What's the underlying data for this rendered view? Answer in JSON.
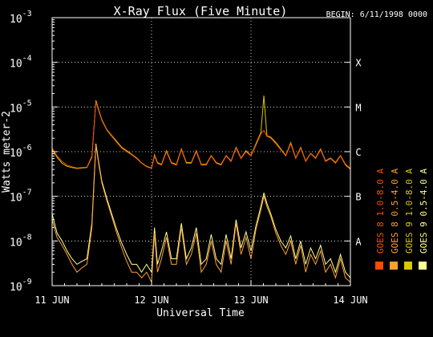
{
  "chart_data": {
    "type": "line",
    "title": "X-Ray Flux (Five Minute)",
    "begin_label": "BEGIN: 6/11/1998 0000",
    "xlabel": "Universal Time",
    "ylabel": "Watts meter-2",
    "x_ticks": [
      "11 JUN",
      "12 JUN",
      "13 JUN",
      "14 JUN"
    ],
    "xlim": [
      0,
      3
    ],
    "y_scale": "log",
    "ylim": [
      1e-09,
      0.001
    ],
    "y_tick_labels": [
      {
        "value": 1e-09,
        "mant": "10",
        "exp": "-9"
      },
      {
        "value": 1e-08,
        "mant": "10",
        "exp": "-8"
      },
      {
        "value": 1e-07,
        "mant": "10",
        "exp": "-7"
      },
      {
        "value": 1e-06,
        "mant": "10",
        "exp": "-6"
      },
      {
        "value": 1e-05,
        "mant": "10",
        "exp": "-5"
      },
      {
        "value": 0.0001,
        "mant": "10",
        "exp": "-4"
      },
      {
        "value": 0.001,
        "mant": "10",
        "exp": "-3"
      }
    ],
    "flare_classes": [
      {
        "label": "A",
        "value": 1e-08
      },
      {
        "label": "B",
        "value": 1e-07
      },
      {
        "label": "C",
        "value": 1e-06
      },
      {
        "label": "M",
        "value": 1e-05
      },
      {
        "label": "X",
        "value": 0.0001
      }
    ],
    "grid": "dotted horizontal at each decade, dotted vertical at day boundaries",
    "legend_placement": "right (rotated text)",
    "legend": [
      {
        "label": "GOES 8 1.0-8.0 A",
        "color": "#ff4a00"
      },
      {
        "label": "GOES 8 0.5-4.0 A",
        "color": "#ffa030"
      },
      {
        "label": "GOES 9 1.0-8.0 A",
        "color": "#d8c800"
      },
      {
        "label": "GOES 9 0.5-4.0 A",
        "color": "#ffff90"
      }
    ],
    "series": [
      {
        "name": "GOES 8 1.0-8.0 A",
        "color": "#ff4a00",
        "x": [
          0,
          0.05,
          0.1,
          0.15,
          0.2,
          0.25,
          0.3,
          0.35,
          0.4,
          0.44,
          0.47,
          0.5,
          0.55,
          0.6,
          0.65,
          0.7,
          0.75,
          0.8,
          0.85,
          0.9,
          0.95,
          1.0,
          1.03,
          1.06,
          1.1,
          1.15,
          1.2,
          1.25,
          1.3,
          1.35,
          1.4,
          1.45,
          1.5,
          1.55,
          1.6,
          1.65,
          1.7,
          1.75,
          1.8,
          1.85,
          1.9,
          1.95,
          2.0,
          2.05,
          2.1,
          2.13,
          2.16,
          2.2,
          2.25,
          2.3,
          2.35,
          2.4,
          2.45,
          2.5,
          2.55,
          2.6,
          2.65,
          2.7,
          2.75,
          2.8,
          2.85,
          2.9,
          2.95,
          3.0
        ],
        "values": [
          1.2e-06,
          8e-07,
          6e-07,
          5e-07,
          4.6e-07,
          4.3e-07,
          4.4e-07,
          4.5e-07,
          8e-07,
          1.3e-05,
          8e-06,
          5e-06,
          3e-06,
          2.2e-06,
          1.6e-06,
          1.2e-06,
          1e-06,
          8.5e-07,
          7e-07,
          5.5e-07,
          4.6e-07,
          4.2e-07,
          8e-07,
          5.5e-07,
          5e-07,
          1e-06,
          5.5e-07,
          5e-07,
          1.1e-06,
          5.5e-07,
          5.5e-07,
          1e-06,
          5e-07,
          5e-07,
          8e-07,
          5.5e-07,
          5e-07,
          8e-07,
          6e-07,
          1.2e-06,
          7e-07,
          1e-06,
          8e-07,
          1.4e-06,
          2.5e-06,
          3e-06,
          2.2e-06,
          2e-06,
          1.5e-06,
          1.1e-06,
          8e-07,
          1.5e-06,
          7e-07,
          1.2e-06,
          6e-07,
          9e-07,
          7e-07,
          1.1e-06,
          6e-07,
          7e-07,
          5.5e-07,
          8e-07,
          5e-07,
          4e-07
        ]
      },
      {
        "name": "GOES 8 0.5-4.0 A",
        "color": "#ffa030",
        "x": [
          0,
          0.05,
          0.1,
          0.15,
          0.2,
          0.25,
          0.3,
          0.35,
          0.4,
          0.44,
          0.47,
          0.5,
          0.55,
          0.6,
          0.65,
          0.7,
          0.75,
          0.8,
          0.85,
          0.9,
          0.95,
          1.0,
          1.03,
          1.06,
          1.1,
          1.15,
          1.2,
          1.25,
          1.3,
          1.35,
          1.4,
          1.45,
          1.5,
          1.55,
          1.6,
          1.65,
          1.7,
          1.75,
          1.8,
          1.85,
          1.9,
          1.95,
          2.0,
          2.05,
          2.1,
          2.13,
          2.16,
          2.2,
          2.25,
          2.3,
          2.35,
          2.4,
          2.45,
          2.5,
          2.55,
          2.6,
          2.65,
          2.7,
          2.75,
          2.8,
          2.85,
          2.9,
          2.95,
          3.0
        ],
        "values": [
          3e-08,
          1.2e-08,
          8e-09,
          5e-09,
          3e-09,
          2e-09,
          2.5e-09,
          3e-09,
          2e-08,
          1.4e-06,
          5e-07,
          2e-07,
          8e-08,
          3.5e-08,
          1.5e-08,
          7e-09,
          3.5e-09,
          2e-09,
          2e-09,
          1.5e-09,
          2e-09,
          1.2e-09,
          1.5e-08,
          2e-09,
          4e-09,
          1.2e-08,
          3e-09,
          3e-09,
          2e-08,
          3e-09,
          5e-09,
          1.5e-08,
          2e-09,
          3e-09,
          1e-08,
          3e-09,
          2e-09,
          1e-08,
          3e-09,
          2.5e-08,
          5e-09,
          1.2e-08,
          4e-09,
          1.8e-08,
          5e-08,
          1e-07,
          6e-08,
          3.5e-08,
          1.5e-08,
          8e-09,
          5e-09,
          1e-08,
          3e-09,
          8e-09,
          2e-09,
          5e-09,
          3e-09,
          6e-09,
          2e-09,
          3e-09,
          1.5e-09,
          4e-09,
          1.5e-09,
          1.2e-09
        ]
      },
      {
        "name": "GOES 9 1.0-8.0 A",
        "color": "#d8c800",
        "x": [
          0,
          0.05,
          0.1,
          0.15,
          0.2,
          0.25,
          0.3,
          0.35,
          0.4,
          0.44,
          0.47,
          0.5,
          0.55,
          0.6,
          0.65,
          0.7,
          0.75,
          0.8,
          0.85,
          0.9,
          0.95,
          1.0,
          1.03,
          1.06,
          1.1,
          1.15,
          1.2,
          1.25,
          1.3,
          1.35,
          1.4,
          1.45,
          1.5,
          1.55,
          1.6,
          1.65,
          1.7,
          1.75,
          1.8,
          1.85,
          1.9,
          1.95,
          2.0,
          2.05,
          2.1,
          2.13,
          2.16,
          2.2,
          2.25,
          2.3,
          2.35,
          2.4,
          2.45,
          2.5,
          2.55,
          2.6,
          2.65,
          2.7,
          2.75,
          2.8,
          2.85,
          2.9,
          2.95,
          3.0
        ],
        "values": [
          1.1e-06,
          7.5e-07,
          5.5e-07,
          4.7e-07,
          4.4e-07,
          4.2e-07,
          4.3e-07,
          4.4e-07,
          7.5e-07,
          1.4e-05,
          8.5e-06,
          5.2e-06,
          3.1e-06,
          2.3e-06,
          1.7e-06,
          1.25e-06,
          1.05e-06,
          8.8e-07,
          7.2e-07,
          5.6e-07,
          4.7e-07,
          4.3e-07,
          8.5e-07,
          5.7e-07,
          5.2e-07,
          1.05e-06,
          5.7e-07,
          5.2e-07,
          1.15e-06,
          5.7e-07,
          5.7e-07,
          1.05e-06,
          5.2e-07,
          5.2e-07,
          8.2e-07,
          5.7e-07,
          5.2e-07,
          8.2e-07,
          6.2e-07,
          1.25e-06,
          7.2e-07,
          1.05e-06,
          8.2e-07,
          1.5e-06,
          2.7e-06,
          1.8e-05,
          2.3e-06,
          2.1e-06,
          1.6e-06,
          1.15e-06,
          8.2e-07,
          1.6e-06,
          7.2e-07,
          1.25e-06,
          6.2e-07,
          9.2e-07,
          7.2e-07,
          1.15e-06,
          6.2e-07,
          7.2e-07,
          5.7e-07,
          8.2e-07,
          5.2e-07,
          4.2e-07
        ]
      },
      {
        "name": "GOES 9 0.5-4.0 A",
        "color": "#ffff90",
        "x": [
          0,
          0.05,
          0.1,
          0.15,
          0.2,
          0.25,
          0.3,
          0.35,
          0.4,
          0.44,
          0.47,
          0.5,
          0.55,
          0.6,
          0.65,
          0.7,
          0.75,
          0.8,
          0.85,
          0.9,
          0.95,
          1.0,
          1.03,
          1.06,
          1.1,
          1.15,
          1.2,
          1.25,
          1.3,
          1.35,
          1.4,
          1.45,
          1.5,
          1.55,
          1.6,
          1.65,
          1.7,
          1.75,
          1.8,
          1.85,
          1.9,
          1.95,
          2.0,
          2.05,
          2.1,
          2.13,
          2.16,
          2.2,
          2.25,
          2.3,
          2.35,
          2.4,
          2.45,
          2.5,
          2.55,
          2.6,
          2.65,
          2.7,
          2.75,
          2.8,
          2.85,
          2.9,
          2.95,
          3.0
        ],
        "values": [
          4e-08,
          1.5e-08,
          1e-08,
          6e-09,
          4e-09,
          3e-09,
          3.5e-09,
          4e-09,
          2.5e-08,
          1.5e-06,
          5.5e-07,
          2.2e-07,
          9e-08,
          4e-08,
          1.8e-08,
          9e-09,
          5e-09,
          3e-09,
          3e-09,
          2e-09,
          3e-09,
          2e-09,
          2e-08,
          3e-09,
          6e-09,
          1.6e-08,
          4e-09,
          4e-09,
          2.5e-08,
          4e-09,
          7e-09,
          2e-08,
          3e-09,
          4e-09,
          1.4e-08,
          4e-09,
          3e-09,
          1.4e-08,
          4e-09,
          3e-08,
          7e-09,
          1.6e-08,
          6e-09,
          2.2e-08,
          6e-08,
          1.2e-07,
          7e-08,
          4e-08,
          1.8e-08,
          1e-08,
          7e-09,
          1.3e-08,
          4e-09,
          1e-08,
          3e-09,
          7e-09,
          4e-09,
          8e-09,
          3e-09,
          4e-09,
          2e-09,
          5e-09,
          2e-09,
          1.5e-09
        ]
      }
    ]
  }
}
